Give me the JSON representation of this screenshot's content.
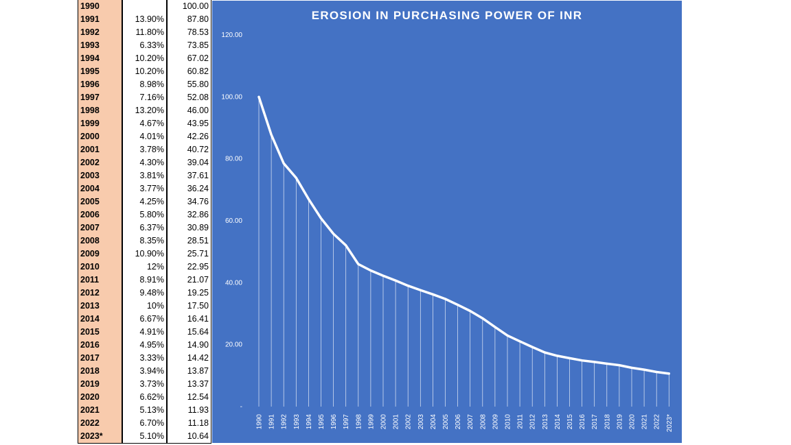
{
  "table": {
    "rows": [
      {
        "year": "1990",
        "inflation": "",
        "value": "100.00"
      },
      {
        "year": "1991",
        "inflation": "13.90%",
        "value": "87.80"
      },
      {
        "year": "1992",
        "inflation": "11.80%",
        "value": "78.53"
      },
      {
        "year": "1993",
        "inflation": "6.33%",
        "value": "73.85"
      },
      {
        "year": "1994",
        "inflation": "10.20%",
        "value": "67.02"
      },
      {
        "year": "1995",
        "inflation": "10.20%",
        "value": "60.82"
      },
      {
        "year": "1996",
        "inflation": "8.98%",
        "value": "55.80"
      },
      {
        "year": "1997",
        "inflation": "7.16%",
        "value": "52.08"
      },
      {
        "year": "1998",
        "inflation": "13.20%",
        "value": "46.00"
      },
      {
        "year": "1999",
        "inflation": "4.67%",
        "value": "43.95"
      },
      {
        "year": "2000",
        "inflation": "4.01%",
        "value": "42.26"
      },
      {
        "year": "2001",
        "inflation": "3.78%",
        "value": "40.72"
      },
      {
        "year": "2002",
        "inflation": "4.30%",
        "value": "39.04"
      },
      {
        "year": "2003",
        "inflation": "3.81%",
        "value": "37.61"
      },
      {
        "year": "2004",
        "inflation": "3.77%",
        "value": "36.24"
      },
      {
        "year": "2005",
        "inflation": "4.25%",
        "value": "34.76"
      },
      {
        "year": "2006",
        "inflation": "5.80%",
        "value": "32.86"
      },
      {
        "year": "2007",
        "inflation": "6.37%",
        "value": "30.89"
      },
      {
        "year": "2008",
        "inflation": "8.35%",
        "value": "28.51"
      },
      {
        "year": "2009",
        "inflation": "10.90%",
        "value": "25.71"
      },
      {
        "year": "2010",
        "inflation": "12%",
        "value": "22.95"
      },
      {
        "year": "2011",
        "inflation": "8.91%",
        "value": "21.07"
      },
      {
        "year": "2012",
        "inflation": "9.48%",
        "value": "19.25"
      },
      {
        "year": "2013",
        "inflation": "10%",
        "value": "17.50"
      },
      {
        "year": "2014",
        "inflation": "6.67%",
        "value": "16.41"
      },
      {
        "year": "2015",
        "inflation": "4.91%",
        "value": "15.64"
      },
      {
        "year": "2016",
        "inflation": "4.95%",
        "value": "14.90"
      },
      {
        "year": "2017",
        "inflation": "3.33%",
        "value": "14.42"
      },
      {
        "year": "2018",
        "inflation": "3.94%",
        "value": "13.87"
      },
      {
        "year": "2019",
        "inflation": "3.73%",
        "value": "13.37"
      },
      {
        "year": "2020",
        "inflation": "6.62%",
        "value": "12.54"
      },
      {
        "year": "2021",
        "inflation": "5.13%",
        "value": "11.93"
      },
      {
        "year": "2022",
        "inflation": "6.70%",
        "value": "11.18"
      },
      {
        "year": "2023*",
        "inflation": "5.10%",
        "value": "10.64"
      }
    ]
  },
  "chart_data": {
    "type": "line",
    "title": "EROSION IN PURCHASING POWER OF INR",
    "xlabel": "",
    "ylabel": "",
    "x": [
      "1990",
      "1991",
      "1992",
      "1993",
      "1994",
      "1995",
      "1996",
      "1997",
      "1998",
      "1999",
      "2000",
      "2001",
      "2002",
      "2003",
      "2004",
      "2005",
      "2006",
      "2007",
      "2008",
      "2009",
      "2010",
      "2011",
      "2012",
      "2013",
      "2014",
      "2015",
      "2016",
      "2017",
      "2018",
      "2019",
      "2020",
      "2021",
      "2022",
      "2023*"
    ],
    "series": [
      {
        "values": [
          100.0,
          87.8,
          78.53,
          73.85,
          67.02,
          60.82,
          55.8,
          52.08,
          46.0,
          43.95,
          42.26,
          40.72,
          39.04,
          37.61,
          36.24,
          34.76,
          32.86,
          30.89,
          28.51,
          25.71,
          22.95,
          21.07,
          19.25,
          17.5,
          16.41,
          15.64,
          14.9,
          14.42,
          13.87,
          13.37,
          12.54,
          11.93,
          11.18,
          10.64
        ]
      }
    ],
    "ylim": [
      0,
      120
    ],
    "yticks": [
      0,
      20,
      40,
      60,
      80,
      100,
      120
    ],
    "ytick_labels": [
      "-",
      "20.00",
      "40.00",
      "60.00",
      "80.00",
      "100.00",
      "120.00"
    ],
    "drop_lines": true,
    "grid": false,
    "colors": {
      "background": "#4472c4",
      "line": "#ffffff",
      "drop_lines": "#ffffff"
    }
  }
}
